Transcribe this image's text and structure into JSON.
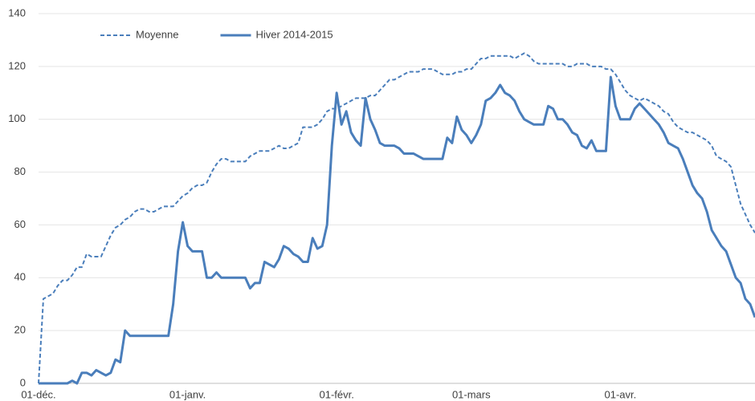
{
  "chart_data": {
    "type": "line",
    "categories": [
      "01-déc.",
      null,
      null,
      null,
      null,
      null,
      null,
      null,
      null,
      null,
      null,
      null,
      null,
      null,
      null,
      null,
      null,
      null,
      null,
      null,
      null,
      null,
      null,
      null,
      null,
      null,
      null,
      null,
      null,
      null,
      null,
      "01-janv.",
      null,
      null,
      null,
      null,
      null,
      null,
      null,
      null,
      null,
      null,
      null,
      null,
      null,
      null,
      null,
      null,
      null,
      null,
      null,
      null,
      null,
      null,
      null,
      null,
      null,
      null,
      null,
      null,
      null,
      null,
      "01-févr.",
      null,
      null,
      null,
      null,
      null,
      null,
      null,
      null,
      null,
      null,
      null,
      null,
      null,
      null,
      null,
      null,
      null,
      null,
      null,
      null,
      null,
      null,
      null,
      null,
      null,
      null,
      null,
      "01-mars",
      null,
      null,
      null,
      null,
      null,
      null,
      null,
      null,
      null,
      null,
      null,
      null,
      null,
      null,
      null,
      null,
      null,
      null,
      null,
      null,
      null,
      null,
      null,
      null,
      null,
      null,
      null,
      null,
      null,
      null,
      "01-avr.",
      null,
      null,
      null,
      null,
      null,
      null,
      null,
      null,
      null,
      null,
      null,
      null,
      null,
      null,
      null,
      null,
      null,
      null,
      null,
      null,
      null,
      null,
      null,
      null,
      null,
      null,
      null,
      null
    ],
    "series": [
      {
        "name": "Moyenne",
        "color": "#4a7ebb",
        "line_style": "dashed",
        "values": [
          0,
          32,
          33,
          34,
          37,
          39,
          39,
          41,
          44,
          44,
          49,
          48,
          48,
          48,
          52,
          56,
          59,
          60,
          62,
          63,
          65,
          66,
          66,
          65,
          65,
          66,
          67,
          67,
          67,
          69,
          71,
          72,
          74,
          75,
          75,
          76,
          80,
          83,
          85,
          85,
          84,
          84,
          84,
          84,
          86,
          87,
          88,
          88,
          88,
          89,
          90,
          89,
          89,
          90,
          91,
          97,
          97,
          97,
          98,
          100,
          103,
          104,
          104,
          105,
          106,
          107,
          108,
          108,
          108,
          109,
          109,
          111,
          113,
          115,
          115,
          116,
          117,
          118,
          118,
          118,
          119,
          119,
          119,
          118,
          117,
          117,
          117,
          118,
          118,
          119,
          119,
          121,
          123,
          123,
          124,
          124,
          124,
          124,
          124,
          123,
          124,
          125,
          124,
          122,
          121,
          121,
          121,
          121,
          121,
          121,
          120,
          120,
          121,
          121,
          121,
          120,
          120,
          120,
          119,
          119,
          117,
          114,
          111,
          109,
          108,
          107,
          108,
          107,
          106,
          105,
          103,
          102,
          99,
          97,
          96,
          95,
          95,
          94,
          93,
          92,
          90,
          86,
          85,
          84,
          82,
          75,
          68,
          64,
          60,
          57
        ]
      },
      {
        "name": "Hiver 2014-2015",
        "color": "#4a7ebb",
        "line_style": "solid",
        "values": [
          0,
          0,
          0,
          0,
          0,
          0,
          0,
          1,
          0,
          4,
          4,
          3,
          5,
          4,
          3,
          4,
          9,
          8,
          20,
          18,
          18,
          18,
          18,
          18,
          18,
          18,
          18,
          18,
          30,
          50,
          61,
          52,
          50,
          50,
          50,
          40,
          40,
          42,
          40,
          40,
          40,
          40,
          40,
          40,
          36,
          38,
          38,
          46,
          45,
          44,
          47,
          52,
          51,
          49,
          48,
          46,
          46,
          55,
          51,
          52,
          60,
          90,
          110,
          98,
          103,
          95,
          92,
          90,
          108,
          100,
          96,
          91,
          90,
          90,
          90,
          89,
          87,
          87,
          87,
          86,
          85,
          85,
          85,
          85,
          85,
          93,
          91,
          101,
          96,
          94,
          91,
          94,
          98,
          107,
          108,
          110,
          113,
          110,
          109,
          107,
          103,
          100,
          99,
          98,
          98,
          98,
          105,
          104,
          100,
          100,
          98,
          95,
          94,
          90,
          89,
          92,
          88,
          88,
          88,
          116,
          105,
          100,
          100,
          100,
          104,
          106,
          104,
          102,
          100,
          98,
          95,
          91,
          90,
          89,
          85,
          80,
          75,
          72,
          70,
          65,
          58,
          55,
          52,
          50,
          45,
          40,
          38,
          32,
          30,
          25
        ]
      }
    ],
    "ylim": [
      0,
      140
    ],
    "yticks": [
      0,
      20,
      40,
      60,
      80,
      100,
      120,
      140
    ],
    "grid": true,
    "legend": "top-left"
  }
}
